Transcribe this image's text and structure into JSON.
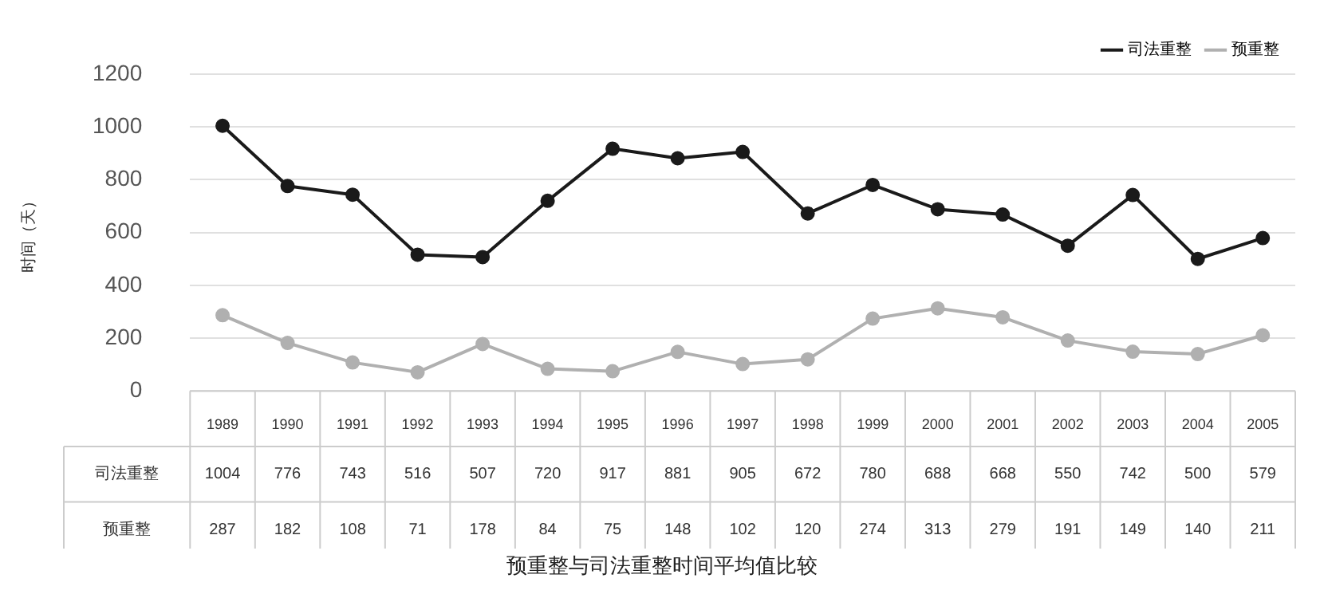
{
  "chart_data": {
    "type": "line",
    "title": "预重整与司法重整时间平均值比较",
    "ylabel": "时间（天）",
    "categories": [
      "1989",
      "1990",
      "1991",
      "1992",
      "1993",
      "1994",
      "1995",
      "1996",
      "1997",
      "1998",
      "1999",
      "2000",
      "2001",
      "2002",
      "2003",
      "2004",
      "2005"
    ],
    "series": [
      {
        "name": "司法重整",
        "color": "#1a1a1a",
        "values": [
          1004,
          776,
          743,
          516,
          507,
          720,
          917,
          881,
          905,
          672,
          780,
          688,
          668,
          550,
          742,
          500,
          579
        ]
      },
      {
        "name": "预重整",
        "color": "#b0b0b0",
        "values": [
          287,
          182,
          108,
          71,
          178,
          84,
          75,
          148,
          102,
          120,
          274,
          313,
          279,
          191,
          149,
          140,
          211
        ]
      }
    ],
    "ylim": [
      0,
      1200
    ],
    "yticks": [
      0,
      200,
      400,
      600,
      800,
      1000,
      1200
    ],
    "grid": "y",
    "legend": "top right",
    "marker": "circle",
    "line_style": "solid",
    "data_labels": true
  }
}
